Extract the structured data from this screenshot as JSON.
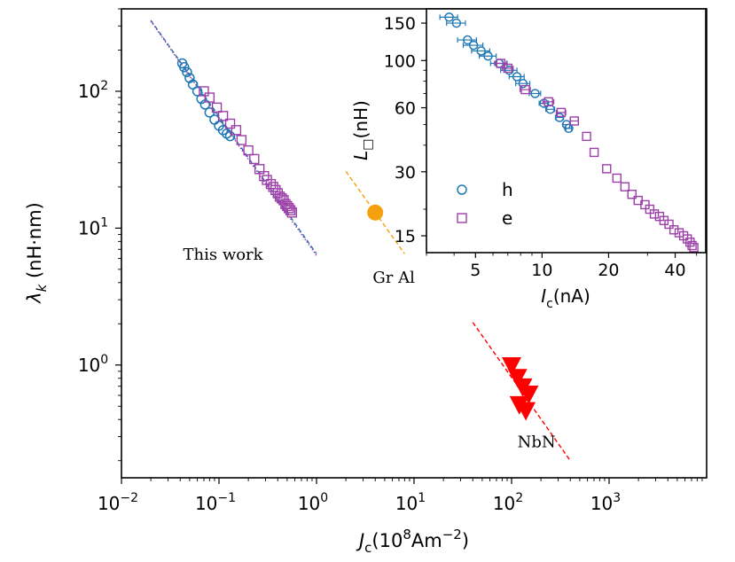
{
  "chart_data": [
    {
      "type": "scatter",
      "xlabel": "J_c(10^8Am^-2)",
      "xlabel_parts": {
        "main": "J",
        "sub": "c",
        "rest": "(10",
        "exp": "8",
        "unit": "Am",
        "unit_exp": "−2",
        "close": ")"
      },
      "ylabel_parts": {
        "main": "λ",
        "sub": "k",
        "rest": " (nH·nm)"
      },
      "x_scale": "log",
      "y_scale": "log",
      "xlim": [
        0.01,
        10000
      ],
      "ylim": [
        0.15,
        400
      ],
      "x_ticks": [
        {
          "value": 0.01,
          "base": "10",
          "exp": "−2"
        },
        {
          "value": 0.1,
          "base": "10",
          "exp": "−1"
        },
        {
          "value": 1,
          "base": "10",
          "exp": "0"
        },
        {
          "value": 10,
          "base": "10",
          "exp": "1"
        },
        {
          "value": 100,
          "base": "10",
          "exp": "2"
        },
        {
          "value": 1000,
          "base": "10",
          "exp": "3"
        }
      ],
      "y_ticks": [
        {
          "value": 1,
          "base": "10",
          "exp": "0"
        },
        {
          "value": 10,
          "base": "10",
          "exp": "1"
        },
        {
          "value": 100,
          "base": "10",
          "exp": "2"
        }
      ],
      "annotations": [
        {
          "text": "This work",
          "x": 0.11,
          "y": 5.9
        },
        {
          "text": "Gr Al",
          "x": 6.2,
          "y": 4.0
        },
        {
          "text": "NbN",
          "x": 180,
          "y": 0.25
        }
      ],
      "series": [
        {
          "marker": "circle",
          "color": "#1f77b4",
          "x": [
            0.042,
            0.044,
            0.047,
            0.05,
            0.054,
            0.06,
            0.066,
            0.072,
            0.08,
            0.09,
            0.1,
            0.11,
            0.12,
            0.13
          ],
          "y": [
            160,
            150,
            138,
            125,
            112,
            100,
            88,
            80,
            70,
            62,
            56,
            52,
            49,
            47
          ]
        },
        {
          "marker": "square",
          "color": "#9c3fa8",
          "x": [
            0.07,
            0.08,
            0.095,
            0.11,
            0.13,
            0.15,
            0.17,
            0.2,
            0.23,
            0.26,
            0.29,
            0.31,
            0.34,
            0.36,
            0.38,
            0.4,
            0.42,
            0.44,
            0.46,
            0.48,
            0.5,
            0.52,
            0.54,
            0.56
          ],
          "y": [
            100,
            90,
            76,
            66,
            58,
            52,
            44,
            37,
            32,
            27,
            24,
            22.5,
            21,
            20,
            19,
            18,
            17,
            16.5,
            16,
            15,
            14.5,
            14,
            13.5,
            13
          ]
        },
        {
          "marker": "circle-filled",
          "color": "#f5a10d",
          "x": [
            4.0
          ],
          "y": [
            13.0
          ]
        },
        {
          "marker": "triangle-down",
          "color": "#ff0000",
          "x": [
            100,
            115,
            130,
            150,
            120,
            140
          ],
          "y": [
            1.0,
            0.82,
            0.7,
            0.62,
            0.52,
            0.47
          ]
        }
      ],
      "fit_lines": [
        {
          "color": "#1f77b4",
          "style": "dashed",
          "x": [
            0.02,
            1.0
          ],
          "y": [
            330,
            6.5
          ]
        },
        {
          "color": "#9c3fa8",
          "style": "dotted",
          "x": [
            0.02,
            1.0
          ],
          "y": [
            325,
            6.3
          ]
        },
        {
          "color": "#f5a10d",
          "style": "dashed",
          "x": [
            2.0,
            8.0
          ],
          "y": [
            26,
            6.5
          ]
        },
        {
          "color": "#ff0000",
          "style": "dashed",
          "x": [
            40,
            400
          ],
          "y": [
            2.05,
            0.2
          ]
        }
      ]
    },
    {
      "type": "scatter",
      "xlabel_parts": {
        "main": "I",
        "sub": "c",
        "rest": "(nA)"
      },
      "ylabel_parts": {
        "main": "L",
        "sub": "□",
        "rest": "(nH)"
      },
      "x_scale": "log",
      "y_scale": "log",
      "xlim": [
        3,
        55
      ],
      "ylim": [
        12.5,
        175
      ],
      "x_ticks": [
        5,
        10,
        20,
        40
      ],
      "y_ticks": [
        15,
        30,
        60,
        100,
        150
      ],
      "legend": {
        "placement": "lower-left",
        "entries": [
          {
            "label": "h",
            "marker": "circle",
            "color": "#1f77b4"
          },
          {
            "label": "e",
            "marker": "square",
            "color": "#9c3fa8"
          }
        ]
      },
      "series": [
        {
          "name": "h",
          "marker": "circle",
          "color": "#1f77b4",
          "x": [
            3.8,
            4.1,
            4.6,
            4.9,
            5.3,
            5.7,
            6.4,
            7.1,
            7.7,
            8.2,
            9.3,
            10.2,
            10.9,
            12.0,
            12.9,
            13.2
          ],
          "y": [
            160,
            150,
            125,
            118,
            111,
            105,
            97,
            90,
            84,
            78,
            70,
            63,
            59,
            54,
            50,
            48
          ],
          "xerr": [
            0.35,
            0.4,
            0.45,
            0.5,
            0.5,
            0.5,
            0.55,
            0.6,
            0.6,
            0.6,
            0.55,
            0.5,
            0.5,
            0.5,
            0.45,
            0.4
          ]
        },
        {
          "name": "e",
          "marker": "square",
          "color": "#9c3fa8",
          "x": [
            6.5,
            7.0,
            8.4,
            10.7,
            12.2,
            14.0,
            15.9,
            17.2,
            19.6,
            21.8,
            23.7,
            25.5,
            27.2,
            29.2,
            30.7,
            32.2,
            34.0,
            35.6,
            37.5,
            39.5,
            41.7,
            43.7,
            45.4,
            46.7,
            47.7,
            48.6
          ],
          "y": [
            97,
            92,
            73,
            64,
            57,
            52,
            44,
            37,
            31,
            28,
            25.5,
            23.5,
            22,
            21,
            20,
            19,
            18.5,
            17.7,
            17,
            16,
            15.5,
            15,
            14.5,
            14,
            13.5,
            13.2
          ],
          "xerr": [
            0.4,
            0.4,
            0.45,
            0.6,
            0.6,
            0.6,
            0,
            0,
            0,
            0,
            0,
            0,
            0,
            0,
            0,
            0,
            0,
            0,
            0,
            0,
            0,
            0,
            0,
            0,
            0,
            0
          ]
        }
      ]
    }
  ]
}
